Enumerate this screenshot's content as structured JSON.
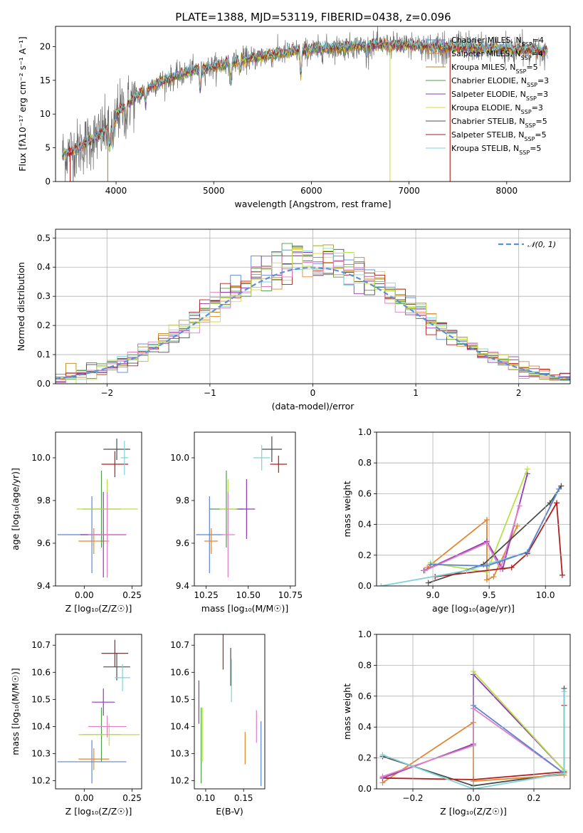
{
  "figure_title": "PLATE=1388, MJD=53119, FIBERID=0438, z=0.096",
  "colors": {
    "Chabrier MILES": "#5a84d3",
    "Salpeter MILES": "#e3862f",
    "Kroupa MILES": "#b8861b",
    "Chabrier ELODIE": "#4f9b4c",
    "Salpeter ELODIE": "#8e3bb0",
    "Kroupa ELODIE": "#d6df3a",
    "Chabrier STELIB": "#4d4d4d",
    "Salpeter STELIB": "#b01e1e",
    "Kroupa STELIB": "#7fd3d9",
    "gauss": "#5b8fd8",
    "pink": "#e17ec4",
    "lime": "#b8e04a"
  },
  "chart_data": [
    {
      "id": "spectrum",
      "type": "line",
      "xlabel": "wavelength [Angstrom, rest frame]",
      "ylabel": "Flux [fλ10⁻¹⁷ erg cm⁻² s⁻¹ A⁻¹]",
      "xlim": [
        3380,
        8650
      ],
      "ylim": [
        0,
        23
      ],
      "xticks": [
        "4000",
        "5000",
        "6000",
        "7000",
        "8000"
      ],
      "yticks": [
        "0",
        "5",
        "10",
        "15",
        "20"
      ],
      "grid": false,
      "legend": "upper-right",
      "legend_entries": [
        {
          "model": "Chabrier MILES",
          "n": "4"
        },
        {
          "model": "Salpeter MILES",
          "n": "4"
        },
        {
          "model": "Kroupa MILES",
          "n": "5"
        },
        {
          "model": "Chabrier ELODIE",
          "n": "3"
        },
        {
          "model": "Salpeter ELODIE",
          "n": "3"
        },
        {
          "model": "Kroupa ELODIE",
          "n": "3"
        },
        {
          "model": "Chabrier STELIB",
          "n": "5"
        },
        {
          "model": "Salpeter STELIB",
          "n": "5"
        },
        {
          "model": "Kroupa STELIB",
          "n": "5"
        }
      ],
      "nssp_label": "N",
      "nssp_sub": "SSP",
      "continuum": {
        "x": [
          3450,
          3600,
          3800,
          4000,
          4200,
          4400,
          4600,
          4800,
          5000,
          5200,
          5400,
          5600,
          5800,
          6000,
          6200,
          6400,
          6600,
          6800,
          7000,
          7200,
          7400,
          7600,
          7800,
          8000,
          8200,
          8400
        ],
        "y": [
          4.5,
          5.5,
          7.5,
          10.0,
          12.5,
          14.5,
          15.5,
          16.5,
          17.0,
          17.8,
          18.3,
          18.8,
          19.2,
          19.5,
          19.8,
          20.0,
          20.2,
          20.2,
          20.2,
          20.0,
          19.9,
          19.8,
          19.7,
          19.6,
          19.5,
          19.4
        ]
      }
    },
    {
      "id": "residuals",
      "type": "line",
      "xlabel": "(data-model)/error",
      "ylabel": "Normed distribution",
      "xlim": [
        -2.5,
        2.5
      ],
      "ylim": [
        0,
        0.53
      ],
      "xticks": [
        -2,
        -1,
        0,
        1,
        2
      ],
      "yticks": [
        0.0,
        0.1,
        0.2,
        0.3,
        0.4,
        0.5
      ],
      "grid": true,
      "legend": "upper-right",
      "legend_entry": "𝒩(0, 1)",
      "bin_width": 0.1
    },
    {
      "id": "age-vs-Z",
      "type": "scatter",
      "xlabel": "Z [log₁₀(Z/Z☉)]",
      "ylabel": "age  [log₁₀(age/yr)]",
      "xlim": [
        -0.15,
        0.3
      ],
      "ylim": [
        9.4,
        10.12
      ],
      "xticks": [
        0.0,
        0.25
      ],
      "yticks": [
        9.4,
        9.6,
        9.8,
        10.0
      ],
      "points": [
        {
          "c": "Chabrier MILES",
          "x": 0.04,
          "y": 9.64,
          "ex": 0.18,
          "ey": 0.18
        },
        {
          "c": "Salpeter MILES",
          "x": 0.05,
          "y": 9.61,
          "ex": 0.08,
          "ey": 0.06
        },
        {
          "c": "Salpeter ELODIE",
          "x": 0.1,
          "y": 9.64,
          "ex": 0.12,
          "ey": 0.2
        },
        {
          "c": "Chabrier ELODIE",
          "x": 0.09,
          "y": 9.76,
          "ex": 0.1,
          "ey": 0.18
        },
        {
          "c": "lime",
          "x": 0.12,
          "y": 9.76,
          "ex": 0.16,
          "ey": 0.14
        },
        {
          "c": "pink",
          "x": 0.12,
          "y": 9.64,
          "ex": 0.1,
          "ey": 0.2
        },
        {
          "c": "Chabrier STELIB",
          "x": 0.17,
          "y": 10.04,
          "ex": 0.07,
          "ey": 0.05
        },
        {
          "c": "Salpeter STELIB",
          "x": 0.16,
          "y": 9.97,
          "ex": 0.07,
          "ey": 0.06
        },
        {
          "c": "Kroupa STELIB",
          "x": 0.21,
          "y": 10.0,
          "ex": 0.02,
          "ey": 0.08
        }
      ]
    },
    {
      "id": "age-vs-mass",
      "type": "scatter",
      "xlabel": "mass [log₁₀(M/M☉)]",
      "ylabel": "",
      "xlim": [
        10.18,
        10.78
      ],
      "ylim": [
        9.4,
        10.12
      ],
      "xticks": [
        10.25,
        10.5,
        10.75
      ],
      "yticks": [
        9.4,
        9.6,
        9.8,
        10.0
      ],
      "points": [
        {
          "c": "Chabrier MILES",
          "x": 10.27,
          "y": 9.64,
          "ex": 0.08,
          "ey": 0.18
        },
        {
          "c": "Salpeter MILES",
          "x": 10.28,
          "y": 9.61,
          "ex": 0.04,
          "ey": 0.06
        },
        {
          "c": "Chabrier ELODIE",
          "x": 10.37,
          "y": 9.76,
          "ex": 0.1,
          "ey": 0.18
        },
        {
          "c": "lime",
          "x": 10.38,
          "y": 9.76,
          "ex": 0.05,
          "ey": 0.14
        },
        {
          "c": "pink",
          "x": 10.38,
          "y": 9.64,
          "ex": 0.04,
          "ey": 0.2
        },
        {
          "c": "Salpeter ELODIE",
          "x": 10.49,
          "y": 9.76,
          "ex": 0.05,
          "ey": 0.14
        },
        {
          "c": "Chabrier STELIB",
          "x": 10.64,
          "y": 10.04,
          "ex": 0.06,
          "ey": 0.06
        },
        {
          "c": "Kroupa STELIB",
          "x": 10.58,
          "y": 10.0,
          "ex": 0.05,
          "ey": 0.06
        },
        {
          "c": "Salpeter STELIB",
          "x": 10.68,
          "y": 9.97,
          "ex": 0.05,
          "ey": 0.04
        }
      ]
    },
    {
      "id": "weight-vs-age",
      "type": "line",
      "xlabel": "age  [log₁₀(age/yr)]",
      "ylabel": "mass weight",
      "xlim": [
        8.5,
        10.22
      ],
      "ylim": [
        0,
        1.0
      ],
      "xticks": [
        9.0,
        9.5,
        10.0
      ],
      "yticks": [
        0.0,
        0.2,
        0.4,
        0.6,
        0.8,
        1.0
      ],
      "grid": true,
      "series": [
        {
          "c": "Salpeter MILES",
          "x": [
            8.95,
            9.48,
            9.48,
            9.54,
            9.75
          ],
          "y": [
            0.12,
            0.43,
            0.04,
            0.06,
            0.39
          ]
        },
        {
          "c": "Salpeter ELODIE",
          "x": [
            8.92,
            9.48,
            9.62,
            9.84
          ],
          "y": [
            0.1,
            0.29,
            0.11,
            0.73
          ]
        },
        {
          "c": "lime",
          "x": [
            8.98,
            9.48,
            9.84
          ],
          "y": [
            0.15,
            0.09,
            0.76
          ]
        },
        {
          "c": "pink",
          "x": [
            8.93,
            9.48,
            9.6,
            9.77
          ],
          "y": [
            0.1,
            0.28,
            0.11,
            0.52
          ]
        },
        {
          "c": "Chabrier STELIB",
          "x": [
            8.96,
            9.45,
            10.04,
            10.14
          ],
          "y": [
            0.02,
            0.14,
            0.54,
            0.65
          ]
        },
        {
          "c": "Salpeter STELIB",
          "x": [
            9.02,
            9.7,
            9.84,
            10.1,
            10.15
          ],
          "y": [
            0.06,
            0.12,
            0.21,
            0.54,
            0.07
          ]
        },
        {
          "c": "Kroupa STELIB",
          "x": [
            8.54,
            9.3,
            9.84,
            10.12
          ],
          "y": [
            0.0,
            0.1,
            0.22,
            0.63
          ]
        },
        {
          "c": "Chabrier MILES",
          "x": [
            8.98,
            9.48,
            9.84,
            10.12
          ],
          "y": [
            0.14,
            0.13,
            0.22,
            0.63
          ]
        }
      ]
    },
    {
      "id": "mass-vs-Z",
      "type": "scatter",
      "xlabel": "Z [log₁₀(Z/Z☉)]",
      "ylabel": "mass [log₁₀(M/M☉)]",
      "xlim": [
        -0.15,
        0.3
      ],
      "ylim": [
        10.17,
        10.74
      ],
      "xticks": [
        0.0,
        0.25
      ],
      "yticks": [
        10.2,
        10.3,
        10.4,
        10.5,
        10.6,
        10.7
      ],
      "points": [
        {
          "c": "Chabrier MILES",
          "x": 0.04,
          "y": 10.27,
          "ex": 0.18,
          "ey": 0.08
        },
        {
          "c": "Salpeter MILES",
          "x": 0.05,
          "y": 10.28,
          "ex": 0.08,
          "ey": 0.04
        },
        {
          "c": "Chabrier ELODIE",
          "x": 0.09,
          "y": 10.37,
          "ex": 0.1,
          "ey": 0.1
        },
        {
          "c": "lime",
          "x": 0.13,
          "y": 10.37,
          "ex": 0.16,
          "ey": 0.04
        },
        {
          "c": "pink",
          "x": 0.12,
          "y": 10.4,
          "ex": 0.1,
          "ey": 0.04
        },
        {
          "c": "Salpeter ELODIE",
          "x": 0.1,
          "y": 10.49,
          "ex": 0.06,
          "ey": 0.05
        },
        {
          "c": "Chabrier STELIB",
          "x": 0.17,
          "y": 10.62,
          "ex": 0.07,
          "ey": 0.05
        },
        {
          "c": "Kroupa STELIB",
          "x": 0.2,
          "y": 10.58,
          "ex": 0.04,
          "ey": 0.05
        },
        {
          "c": "Salpeter STELIB",
          "x": 0.16,
          "y": 10.67,
          "ex": 0.07,
          "ey": 0.05
        }
      ]
    },
    {
      "id": "mass-vs-EBV",
      "type": "scatter",
      "xlabel": "E(B-V)",
      "ylabel": "",
      "xlim": [
        0.085,
        0.178
      ],
      "ylim": [
        10.17,
        10.74
      ],
      "xticks": [
        0.1,
        0.15
      ],
      "yticks": [
        10.2,
        10.3,
        10.4,
        10.5,
        10.6,
        10.7
      ],
      "points": [
        {
          "c": "Salpeter ELODIE",
          "x": 0.091,
          "y": 10.49,
          "ex": 0.0,
          "ey": 0.08
        },
        {
          "c": "Chabrier ELODIE",
          "x": 0.094,
          "y": 10.33,
          "ex": 0.0,
          "ey": 0.14
        },
        {
          "c": "lime",
          "x": 0.096,
          "y": 10.37,
          "ex": 0.0,
          "ey": 0.1
        },
        {
          "c": "Salpeter STELIB",
          "x": 0.123,
          "y": 10.68,
          "ex": 0.0,
          "ey": 0.07
        },
        {
          "c": "Chabrier STELIB",
          "x": 0.133,
          "y": 10.62,
          "ex": 0.0,
          "ey": 0.07
        },
        {
          "c": "Kroupa STELIB",
          "x": 0.134,
          "y": 10.57,
          "ex": 0.0,
          "ey": 0.08
        },
        {
          "c": "Salpeter MILES",
          "x": 0.152,
          "y": 10.32,
          "ex": 0.0,
          "ey": 0.06
        },
        {
          "c": "pink",
          "x": 0.167,
          "y": 10.4,
          "ex": 0.0,
          "ey": 0.06
        },
        {
          "c": "Chabrier MILES",
          "x": 0.173,
          "y": 10.3,
          "ex": 0.0,
          "ey": 0.12
        }
      ]
    },
    {
      "id": "weight-vs-Z",
      "type": "line",
      "xlabel": "Z [log₁₀(Z/Z☉)]",
      "ylabel": "mass weight",
      "xlim": [
        -0.32,
        0.32
      ],
      "ylim": [
        0,
        1.0
      ],
      "xticks": [
        -0.2,
        0.0,
        0.2
      ],
      "yticks": [
        0.0,
        0.2,
        0.4,
        0.6,
        0.8,
        1.0
      ],
      "grid": true,
      "series": [
        {
          "c": "Chabrier STELIB",
          "x": [
            -0.3,
            0.0,
            0.3,
            0.3
          ],
          "y": [
            0.21,
            0.02,
            0.1,
            0.65
          ]
        },
        {
          "c": "Salpeter MILES",
          "x": [
            -0.3,
            0.0,
            0.0,
            0.3
          ],
          "y": [
            0.04,
            0.43,
            0.05,
            0.09
          ]
        },
        {
          "c": "Salpeter STELIB",
          "x": [
            -0.3,
            0.0,
            0.3,
            0.3
          ],
          "y": [
            0.07,
            0.06,
            0.11,
            0.54
          ]
        },
        {
          "c": "Salpeter ELODIE",
          "x": [
            -0.3,
            0.0,
            0.0,
            0.3
          ],
          "y": [
            0.07,
            0.29,
            0.74,
            0.12
          ]
        },
        {
          "c": "lime",
          "x": [
            0.0,
            0.3
          ],
          "y": [
            0.76,
            0.12
          ]
        },
        {
          "c": "pink",
          "x": [
            -0.3,
            0.0,
            0.0,
            0.3
          ],
          "y": [
            0.08,
            0.28,
            0.52,
            0.1
          ]
        },
        {
          "c": "Chabrier MILES",
          "x": [
            0.0,
            0.3
          ],
          "y": [
            0.54,
            0.1
          ]
        },
        {
          "c": "Kroupa STELIB",
          "x": [
            -0.3,
            0.0,
            0.3,
            0.3
          ],
          "y": [
            0.22,
            0.0,
            0.1,
            0.63
          ]
        }
      ]
    }
  ]
}
